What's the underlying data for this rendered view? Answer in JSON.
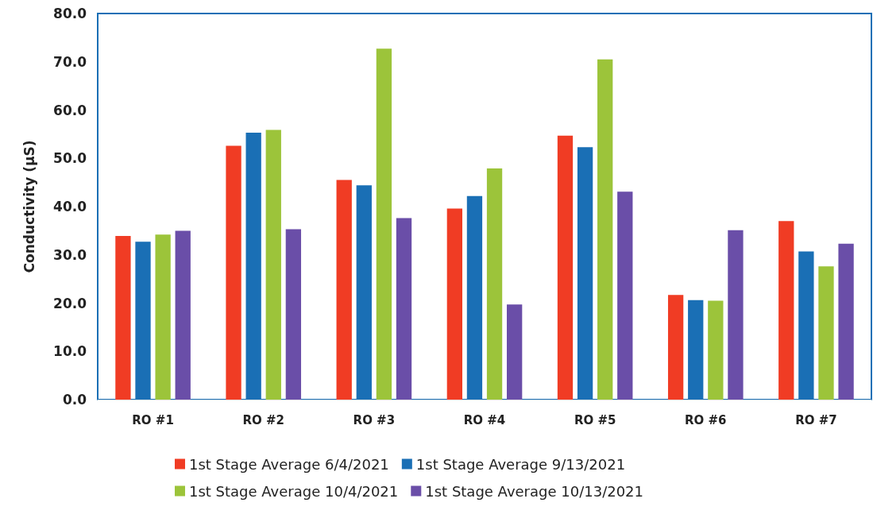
{
  "chart_data": {
    "type": "bar",
    "ylabel": "Conductivity (µS)",
    "categories": [
      "RO #1",
      "RO #2",
      "RO #3",
      "RO #4",
      "RO #5",
      "RO #6",
      "RO #7"
    ],
    "series": [
      {
        "name": "1st Stage Average 6/4/2021",
        "color": "#f03c24",
        "values": [
          33.9,
          52.6,
          45.5,
          39.6,
          54.7,
          21.7,
          37.0
        ]
      },
      {
        "name": "1st Stage Average 9/13/2021",
        "color": "#1a6fb5",
        "values": [
          32.7,
          55.3,
          44.4,
          42.2,
          52.3,
          20.6,
          30.7
        ]
      },
      {
        "name": "1st Stage Average 10/4/2021",
        "color": "#9cc43a",
        "values": [
          34.2,
          55.9,
          72.7,
          47.9,
          70.5,
          20.5,
          27.6
        ]
      },
      {
        "name": "1st Stage Average 10/13/2021",
        "color": "#6a4ea8",
        "values": [
          35.0,
          35.3,
          37.6,
          19.7,
          43.1,
          35.1,
          32.3
        ]
      }
    ],
    "ylim": [
      0,
      80
    ],
    "yticks": [
      {
        "value": 0,
        "label": "0.0"
      },
      {
        "value": 10,
        "label": "10.0"
      },
      {
        "value": 20,
        "label": "20.0"
      },
      {
        "value": 30,
        "label": "30.0"
      },
      {
        "value": 40,
        "label": "40.0"
      },
      {
        "value": 50,
        "label": "50.0"
      },
      {
        "value": 60,
        "label": "60.0"
      },
      {
        "value": 70,
        "label": "70.0"
      },
      {
        "value": 80,
        "label": "80.0"
      }
    ],
    "grid": false,
    "legend": "bottom"
  }
}
